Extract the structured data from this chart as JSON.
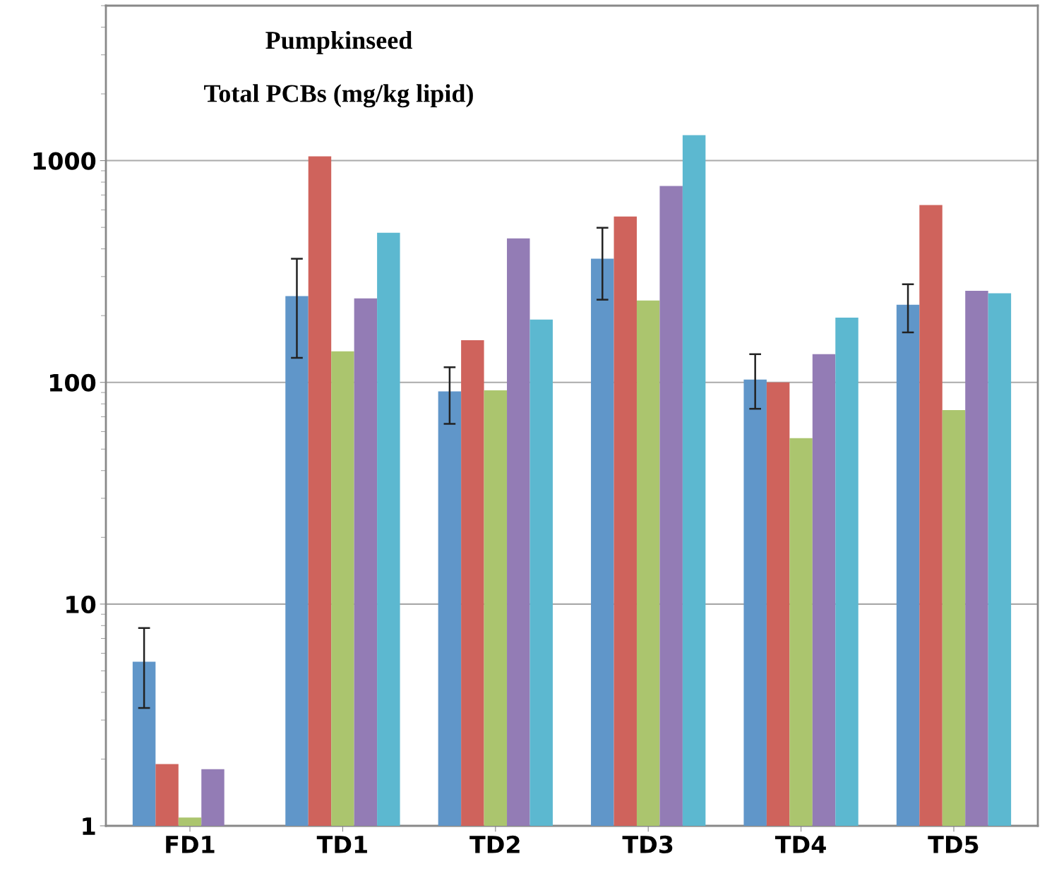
{
  "chart_data": {
    "type": "bar",
    "title": "Pumpkinseed",
    "subtitle": "Total PCBs (mg/kg lipid)",
    "categories": [
      "FD1",
      "TD1",
      "TD2",
      "TD3",
      "TD4",
      "TD5"
    ],
    "series": [
      {
        "color": "#6096c9",
        "values": [
          5.5,
          245,
          91,
          361,
          103,
          224
        ],
        "errors": [
          [
            3.4,
            7.8
          ],
          [
            129,
            361
          ],
          [
            65,
            117
          ],
          [
            236,
            498
          ],
          [
            76,
            134
          ],
          [
            168,
            277
          ]
        ]
      },
      {
        "color": "#cf635c",
        "values": [
          1.9,
          1045,
          155,
          560,
          100,
          630
        ]
      },
      {
        "color": "#abc56e",
        "values": [
          1.09,
          138,
          92,
          234,
          56,
          75
        ]
      },
      {
        "color": "#937cb5",
        "values": [
          1.8,
          239,
          446,
          768,
          134,
          259
        ]
      },
      {
        "color": "#5cb8d0",
        "values": [
          null,
          473,
          192,
          1302,
          196,
          252
        ]
      }
    ],
    "log": "y",
    "ylim": [
      1,
      5000
    ],
    "yticks": [
      1,
      10,
      100,
      1000
    ],
    "grid": "y",
    "legend": false
  }
}
